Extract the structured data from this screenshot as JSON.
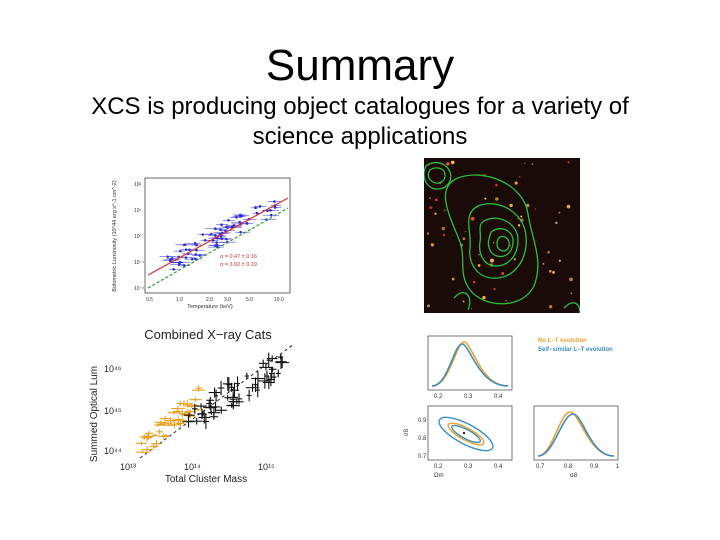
{
  "slide": {
    "title": "Summary",
    "subtitle": "XCS is producing object catalogues for a variety of science applications"
  },
  "lt_plot": {
    "ylabel": "Bolometric Luminosity (10^44 erg s^-1 cm^-2)",
    "xlabel": "Temperature (keV)",
    "yticks": [
      "10²",
      "10¹",
      "10⁰",
      "10⁻¹",
      "10⁻²"
    ],
    "xticks": [
      "0.5",
      "1.0",
      "2.0",
      "3.0",
      "5.0",
      "10.0"
    ],
    "fit1": "α = 0.47 ± 0.16",
    "fit2": "α = 3.02 ± 0.19",
    "colors": {
      "points": "#2d2dd6",
      "fit_line": "#e03030",
      "ss_line": "#2a9a3a",
      "fit_text": "#e03030"
    }
  },
  "xray_image": {
    "colors": {
      "background": "#1a0a08",
      "contours": "#2bbf3a",
      "sources": "#ffb84a"
    }
  },
  "mass_plot": {
    "title": "Combined X−ray Cats",
    "ylabel": "Summed Optical Lum",
    "xlabel": "Total Cluster Mass",
    "yticks": [
      "10⁴⁶",
      "10⁴⁵",
      "10⁴⁴"
    ],
    "xticks": [
      "10¹³",
      "10¹⁴",
      "10¹⁵"
    ],
    "colors": {
      "orange": "#e8a020",
      "black": "#111111"
    }
  },
  "cosmo_plot": {
    "legend_no": "No L−T evolution",
    "legend_ss": "Self−similar L−T evolution",
    "omega_ticks": [
      "0.2",
      "0.3",
      "0.4"
    ],
    "sigma_ticks": [
      "0.7",
      "0.8",
      "0.9",
      "1"
    ],
    "sigma_yticks": [
      "0.9",
      "0.8",
      "0.7"
    ],
    "omega_label": "Ωm",
    "sigma_label": "σ8",
    "colors": {
      "orange": "#f0a030",
      "blue": "#3a8fc0"
    }
  }
}
